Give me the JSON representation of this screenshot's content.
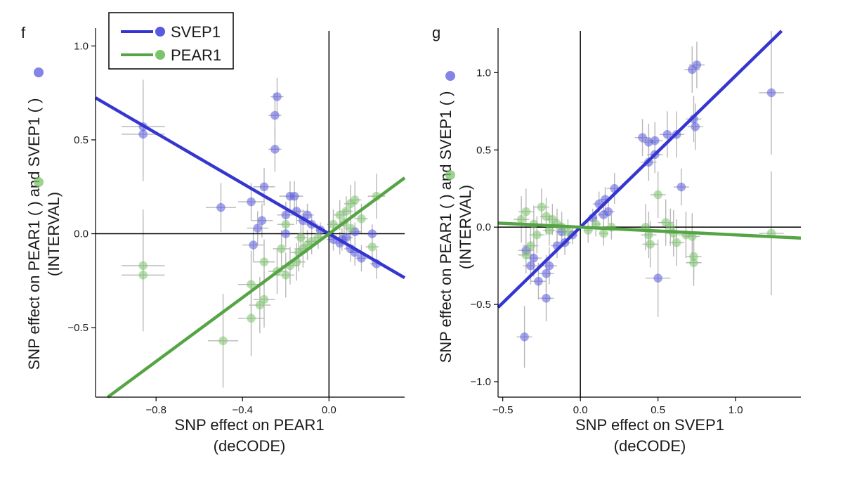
{
  "colors": {
    "svep1": "#3535d0",
    "pear1": "#55a545",
    "svep1_point": "#5a5ae0",
    "pear1_point": "#7cc46c",
    "errbar": "#b8b8b8"
  },
  "legend": {
    "entries": [
      {
        "label": "SVEP1",
        "color": "#3535d0"
      },
      {
        "label": "PEAR1",
        "color": "#55a545"
      }
    ]
  },
  "chart_data": [
    {
      "panel": "f",
      "type": "scatter",
      "xlabel_line1": "SNP effect on PEAR1",
      "xlabel_line2": "(deCODE)",
      "ylabel_line1": "SNP effect on PEAR1 (  ) and SVEP1 (  )",
      "ylabel_line2": "(INTERVAL)",
      "xlim": [
        -1.08,
        0.35
      ],
      "ylim": [
        -0.87,
        1.08
      ],
      "xticks": [
        {
          "v": -0.8,
          "label": "−0.8"
        },
        {
          "v": -0.4,
          "label": "−0.4"
        },
        {
          "v": 0.0,
          "label": "0.0"
        }
      ],
      "yticks": [
        {
          "v": 1.0,
          "label": "1.0"
        },
        {
          "v": 0.5,
          "label": "0.5"
        },
        {
          "v": 0.0,
          "label": "0.0"
        },
        {
          "v": -0.5,
          "label": "−0.5"
        }
      ],
      "lines": [
        {
          "name": "SVEP1",
          "slope": -0.67
        },
        {
          "name": "PEAR1",
          "slope": 0.85
        }
      ],
      "series": [
        {
          "name": "SVEP1",
          "points": [
            [
              -0.86,
              0.57,
              0.1,
              0.25
            ],
            [
              -0.86,
              0.53,
              0.1,
              0.25
            ],
            [
              -0.24,
              0.73,
              0.03,
              0.1
            ],
            [
              -0.25,
              0.63,
              0.03,
              0.12
            ],
            [
              -0.25,
              0.45,
              0.03,
              0.12
            ],
            [
              -0.5,
              0.14,
              0.07,
              0.13
            ],
            [
              -0.36,
              0.17,
              0.06,
              0.1
            ],
            [
              -0.3,
              0.25,
              0.05,
              0.1
            ],
            [
              -0.18,
              0.2,
              0.05,
              0.08
            ],
            [
              -0.16,
              0.2,
              0.04,
              0.08
            ],
            [
              -0.2,
              0.1,
              0.04,
              0.07
            ],
            [
              -0.15,
              0.12,
              0.04,
              0.07
            ],
            [
              -0.1,
              0.1,
              0.03,
              0.06
            ],
            [
              -0.12,
              0.07,
              0.03,
              0.06
            ],
            [
              -0.08,
              0.05,
              0.03,
              0.05
            ],
            [
              -0.33,
              0.03,
              0.05,
              0.09
            ],
            [
              -0.31,
              0.07,
              0.05,
              0.09
            ],
            [
              -0.35,
              -0.06,
              0.05,
              0.09
            ],
            [
              -0.2,
              0.0,
              0.04,
              0.07
            ],
            [
              -0.04,
              0.02,
              0.02,
              0.04
            ],
            [
              0.02,
              -0.03,
              0.03,
              0.06
            ],
            [
              0.05,
              -0.05,
              0.03,
              0.06
            ],
            [
              0.08,
              -0.02,
              0.03,
              0.06
            ],
            [
              0.1,
              -0.08,
              0.03,
              0.07
            ],
            [
              0.12,
              -0.1,
              0.03,
              0.07
            ],
            [
              0.15,
              -0.13,
              0.03,
              0.07
            ],
            [
              0.2,
              0.0,
              0.03,
              0.05
            ],
            [
              0.22,
              -0.16,
              0.03,
              0.08
            ],
            [
              0.12,
              0.01,
              0.03,
              0.05
            ],
            [
              0.06,
              -0.03,
              0.03,
              0.06
            ]
          ]
        },
        {
          "name": "PEAR1",
          "points": [
            [
              -0.86,
              -0.17,
              0.1,
              0.3
            ],
            [
              -0.86,
              -0.22,
              0.1,
              0.3
            ],
            [
              -0.49,
              -0.57,
              0.07,
              0.25
            ],
            [
              -0.36,
              -0.45,
              0.06,
              0.2
            ],
            [
              -0.36,
              -0.27,
              0.06,
              0.18
            ],
            [
              -0.32,
              -0.38,
              0.05,
              0.15
            ],
            [
              -0.3,
              -0.35,
              0.05,
              0.15
            ],
            [
              -0.3,
              -0.15,
              0.05,
              0.12
            ],
            [
              -0.24,
              -0.2,
              0.04,
              0.12
            ],
            [
              -0.2,
              -0.22,
              0.04,
              0.12
            ],
            [
              -0.18,
              -0.17,
              0.04,
              0.1
            ],
            [
              -0.15,
              -0.15,
              0.04,
              0.1
            ],
            [
              -0.14,
              -0.1,
              0.04,
              0.1
            ],
            [
              -0.12,
              -0.08,
              0.04,
              0.1
            ],
            [
              -0.1,
              -0.06,
              0.03,
              0.08
            ],
            [
              -0.13,
              -0.02,
              0.03,
              0.08
            ],
            [
              -0.22,
              -0.08,
              0.04,
              0.1
            ],
            [
              -0.2,
              0.05,
              0.04,
              0.1
            ],
            [
              -0.08,
              -0.04,
              0.03,
              0.07
            ],
            [
              -0.05,
              -0.02,
              0.02,
              0.06
            ],
            [
              0.02,
              0.05,
              0.03,
              0.08
            ],
            [
              0.05,
              0.1,
              0.03,
              0.08
            ],
            [
              0.08,
              0.12,
              0.03,
              0.08
            ],
            [
              0.1,
              0.16,
              0.03,
              0.1
            ],
            [
              0.12,
              0.18,
              0.03,
              0.1
            ],
            [
              0.22,
              0.2,
              0.04,
              0.12
            ],
            [
              0.2,
              -0.07,
              0.03,
              0.1
            ],
            [
              0.07,
              0.06,
              0.02,
              0.07
            ],
            [
              0.15,
              0.08,
              0.03,
              0.08
            ],
            [
              0.1,
              0.03,
              0.03,
              0.07
            ]
          ]
        }
      ]
    },
    {
      "panel": "g",
      "type": "scatter",
      "xlabel_line1": "SNP effect on SVEP1",
      "xlabel_line2": "(deCODE)",
      "ylabel_line1": "SNP effect on PEAR1 (  ) and SVEP1 (  )",
      "ylabel_line2": "(INTERVAL)",
      "xlim": [
        -0.53,
        1.42
      ],
      "ylim": [
        -1.1,
        1.27
      ],
      "xticks": [
        {
          "v": -0.5,
          "label": "−0.5"
        },
        {
          "v": 0.0,
          "label": "0.0"
        },
        {
          "v": 0.5,
          "label": "0.5"
        },
        {
          "v": 1.0,
          "label": "1.0"
        }
      ],
      "yticks": [
        {
          "v": 1.0,
          "label": "1.0"
        },
        {
          "v": 0.5,
          "label": "0.5"
        },
        {
          "v": 0.0,
          "label": "0.0"
        },
        {
          "v": -0.5,
          "label": "−0.5"
        },
        {
          "v": -1.0,
          "label": "−1.0"
        }
      ],
      "lines": [
        {
          "name": "SVEP1",
          "slope": 0.98
        },
        {
          "name": "PEAR1",
          "slope": -0.05
        }
      ],
      "series": [
        {
          "name": "SVEP1",
          "points": [
            [
              0.75,
              1.05,
              0.05,
              0.15
            ],
            [
              0.72,
              1.02,
              0.05,
              0.15
            ],
            [
              0.73,
              0.7,
              0.05,
              0.15
            ],
            [
              0.74,
              0.65,
              0.05,
              0.15
            ],
            [
              0.62,
              0.6,
              0.05,
              0.15
            ],
            [
              0.56,
              0.6,
              0.05,
              0.15
            ],
            [
              0.48,
              0.56,
              0.05,
              0.12
            ],
            [
              0.44,
              0.55,
              0.05,
              0.12
            ],
            [
              0.4,
              0.58,
              0.05,
              0.12
            ],
            [
              0.44,
              0.42,
              0.05,
              0.12
            ],
            [
              0.48,
              0.47,
              0.05,
              0.12
            ],
            [
              0.65,
              0.26,
              0.05,
              0.12
            ],
            [
              1.23,
              0.87,
              0.08,
              0.4
            ],
            [
              0.5,
              -0.33,
              0.08,
              0.25
            ],
            [
              0.22,
              0.25,
              0.05,
              0.1
            ],
            [
              0.16,
              0.18,
              0.04,
              0.08
            ],
            [
              0.12,
              0.15,
              0.04,
              0.08
            ],
            [
              0.18,
              0.1,
              0.04,
              0.08
            ],
            [
              0.15,
              0.08,
              0.04,
              0.08
            ],
            [
              0.08,
              0.06,
              0.03,
              0.06
            ],
            [
              -0.05,
              -0.05,
              0.03,
              0.06
            ],
            [
              -0.1,
              -0.1,
              0.04,
              0.08
            ],
            [
              -0.15,
              -0.12,
              0.04,
              0.08
            ],
            [
              -0.2,
              -0.25,
              0.05,
              0.12
            ],
            [
              -0.22,
              -0.3,
              0.05,
              0.12
            ],
            [
              -0.27,
              -0.35,
              0.05,
              0.12
            ],
            [
              -0.3,
              -0.2,
              0.05,
              0.12
            ],
            [
              -0.35,
              -0.15,
              0.05,
              0.12
            ],
            [
              -0.22,
              -0.46,
              0.05,
              0.15
            ],
            [
              -0.36,
              -0.71,
              0.05,
              0.2
            ],
            [
              -0.32,
              -0.25,
              0.05,
              0.12
            ],
            [
              -0.12,
              -0.03,
              0.04,
              0.08
            ]
          ]
        },
        {
          "name": "PEAR1",
          "points": [
            [
              -0.38,
              0.05,
              0.05,
              0.15
            ],
            [
              -0.35,
              0.1,
              0.05,
              0.15
            ],
            [
              -0.3,
              0.02,
              0.05,
              0.12
            ],
            [
              -0.25,
              0.13,
              0.05,
              0.12
            ],
            [
              -0.22,
              0.07,
              0.04,
              0.12
            ],
            [
              -0.2,
              -0.02,
              0.04,
              0.1
            ],
            [
              -0.18,
              0.05,
              0.04,
              0.1
            ],
            [
              -0.15,
              0.02,
              0.04,
              0.1
            ],
            [
              -0.12,
              0.0,
              0.04,
              0.1
            ],
            [
              -0.08,
              -0.03,
              0.03,
              0.08
            ],
            [
              -0.35,
              -0.18,
              0.05,
              0.12
            ],
            [
              -0.32,
              -0.12,
              0.05,
              0.12
            ],
            [
              -0.28,
              -0.05,
              0.05,
              0.12
            ],
            [
              0.05,
              -0.02,
              0.03,
              0.08
            ],
            [
              0.1,
              0.02,
              0.03,
              0.08
            ],
            [
              0.15,
              -0.04,
              0.03,
              0.08
            ],
            [
              0.2,
              0.0,
              0.03,
              0.08
            ],
            [
              0.42,
              0.0,
              0.05,
              0.15
            ],
            [
              0.44,
              -0.05,
              0.05,
              0.15
            ],
            [
              0.45,
              -0.11,
              0.05,
              0.15
            ],
            [
              0.5,
              0.21,
              0.05,
              0.15
            ],
            [
              0.55,
              0.03,
              0.05,
              0.15
            ],
            [
              0.6,
              -0.04,
              0.05,
              0.15
            ],
            [
              0.62,
              -0.1,
              0.05,
              0.15
            ],
            [
              0.68,
              -0.05,
              0.05,
              0.15
            ],
            [
              0.72,
              -0.06,
              0.05,
              0.15
            ],
            [
              0.73,
              -0.19,
              0.05,
              0.15
            ],
            [
              0.73,
              -0.23,
              0.05,
              0.15
            ],
            [
              1.23,
              -0.04,
              0.08,
              0.4
            ],
            [
              0.58,
              0.0,
              0.05,
              0.12
            ]
          ]
        }
      ]
    }
  ]
}
